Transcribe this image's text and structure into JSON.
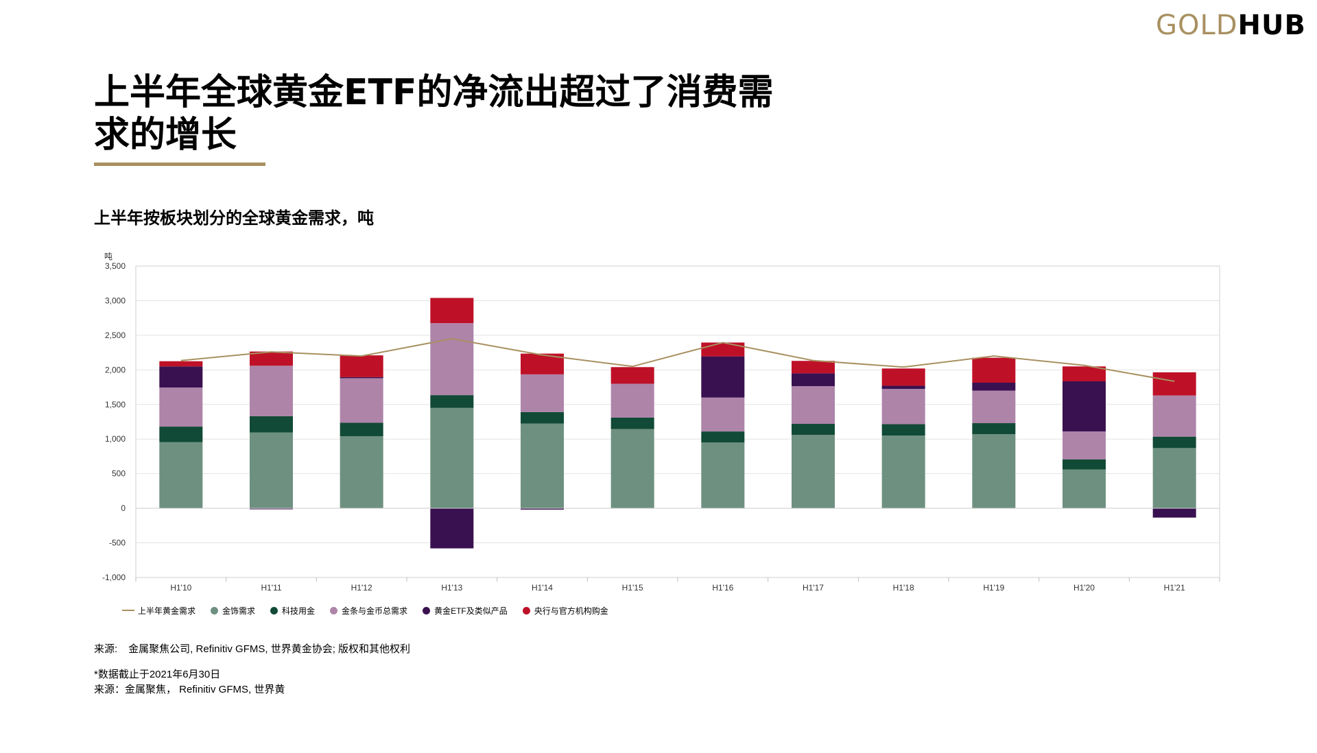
{
  "logo": {
    "gold": "GOLD",
    "hub": "HUB"
  },
  "title": "上半年全球黄金ETF的净流出超过了消费需求的增长",
  "subtitle": "上半年按板块划分的全球黄金需求，吨",
  "source": {
    "label": "来源:",
    "text": "金属聚焦公司, Refinitiv GFMS, 世界黄金协会; 版权和其他权利"
  },
  "footnote": {
    "line1": "*数据截止于2021年6月30日",
    "line2": "来源：金属聚焦， Refinitiv GFMS, 世界黄"
  },
  "chart_data": {
    "type": "bar",
    "stacked": true,
    "ylabel": "吨",
    "ylim": [
      -1000,
      3500
    ],
    "yticks": [
      3500,
      3000,
      2500,
      2000,
      1500,
      1000,
      500,
      0,
      -500,
      -1000
    ],
    "ytick_labels": [
      "3,500",
      "3,000",
      "2,500",
      "2,000",
      "1,500",
      "1,000",
      "500",
      "0",
      "-500",
      "-1,000"
    ],
    "grid": true,
    "legend_position": "bottom-left",
    "categories": [
      "H1'10",
      "H1'11",
      "H1'12",
      "H1'13",
      "H1'14",
      "H1'15",
      "H1'16",
      "H1'17",
      "H1'18",
      "H1'19",
      "H1'20",
      "H1'21"
    ],
    "series": [
      {
        "name": "金饰需求",
        "color": "#6e9080",
        "values": [
          955,
          1095,
          1040,
          1450,
          1225,
          1145,
          950,
          1060,
          1050,
          1070,
          560,
          870
        ]
      },
      {
        "name": "科技用金",
        "color": "#114a36",
        "values": [
          225,
          235,
          195,
          185,
          165,
          165,
          160,
          160,
          165,
          160,
          145,
          165
        ]
      },
      {
        "name": "金条与金币总需求",
        "color": "#ae84a9",
        "values": [
          565,
          730,
          645,
          1040,
          545,
          490,
          490,
          545,
          510,
          470,
          405,
          595
        ]
      },
      {
        "name": "黄金ETF及类似产品",
        "color": "#3a1150",
        "values": [
          305,
          -15,
          15,
          -580,
          -20,
          0,
          595,
          185,
          45,
          115,
          725,
          -135
        ]
      },
      {
        "name": "央行与官方机构购金",
        "color": "#be1128",
        "values": [
          75,
          205,
          315,
          365,
          300,
          240,
          200,
          180,
          250,
          360,
          215,
          335
        ]
      }
    ],
    "line_series": {
      "name": "上半年黄金需求",
      "color": "#a89060",
      "values": [
        2135,
        2260,
        2200,
        2450,
        2215,
        2050,
        2395,
        2135,
        2040,
        2200,
        2065,
        1835
      ]
    }
  }
}
